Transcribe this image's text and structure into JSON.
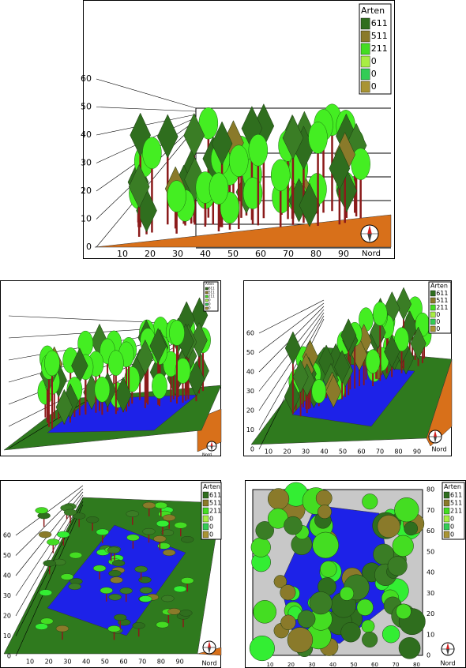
{
  "panels": [
    {
      "legend": {
        "title": "Arten",
        "items": [
          "611",
          "511",
          "211",
          "0",
          "0",
          "0"
        ]
      },
      "y_labels": [
        "60",
        "50",
        "40",
        "30",
        "20",
        "10",
        "0"
      ],
      "x_labels": [
        "10",
        "20",
        "30",
        "40",
        "50",
        "60",
        "70",
        "80",
        "90"
      ],
      "north": "Nord"
    },
    {
      "legend": {
        "title": "Arten",
        "items": [
          "611",
          "511",
          "211",
          "0",
          "0",
          "0"
        ]
      },
      "north": "Nord"
    },
    {
      "legend": {
        "title": "Arten",
        "items": [
          "611",
          "511",
          "211",
          "0",
          "0",
          "0"
        ]
      },
      "y_labels": [
        "60",
        "50",
        "40",
        "30",
        "20",
        "10",
        "0"
      ],
      "x_labels": [
        "10",
        "20",
        "30",
        "40",
        "50",
        "60",
        "70",
        "80",
        "90"
      ],
      "north": "Nord"
    },
    {
      "legend": {
        "title": "Arten",
        "items": [
          "611",
          "511",
          "211",
          "0",
          "0",
          "0"
        ]
      },
      "y_labels": [
        "60",
        "50",
        "40",
        "30",
        "20",
        "10",
        "0"
      ],
      "x_labels": [
        "10",
        "20",
        "30",
        "40",
        "50",
        "60",
        "70",
        "80",
        "90"
      ],
      "north": "Nord"
    },
    {
      "legend": {
        "title": "Arten",
        "items": [
          "611",
          "511",
          "211",
          "0",
          "0",
          "0"
        ]
      },
      "y_labels": [
        "80",
        "70",
        "60",
        "50",
        "40",
        "30",
        "20",
        "10",
        "0"
      ],
      "x_labels": [
        "10",
        "20",
        "30",
        "40",
        "50",
        "60",
        "70",
        "80"
      ],
      "north": "Nord"
    }
  ]
}
